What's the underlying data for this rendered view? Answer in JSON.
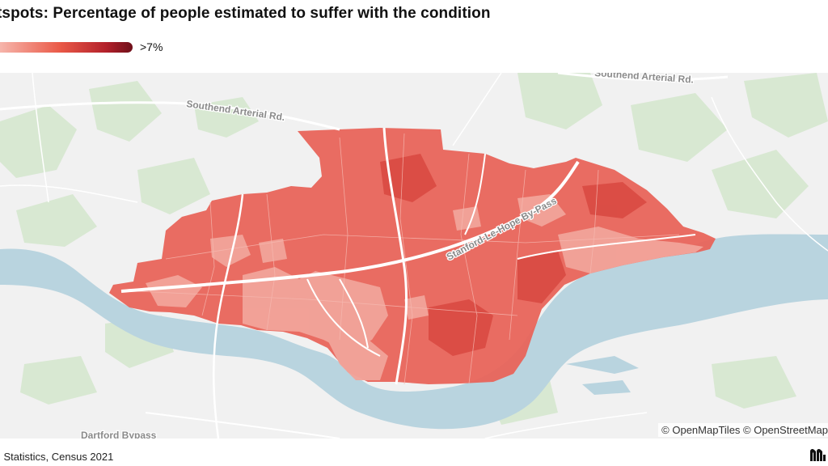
{
  "title": "tspots: Percentage of people estimated to suffer with the condition",
  "legend": {
    "max_label": ">7%",
    "gradient": [
      "#f6b5ab",
      "#ea5a48",
      "#b3202a",
      "#6e0f1a"
    ]
  },
  "map": {
    "road_labels": [
      "Southend Arterial Rd.",
      "Southend Arterial Rd.",
      "Stanford-Le-Hope By-Pass",
      "Dartford Bypass"
    ],
    "attribution": "© OpenMapTiles © OpenStreetMap",
    "colors": {
      "background": "#f1f1f1",
      "water": "#b9d4df",
      "park": "#d8e8d2",
      "road": "#ffffff",
      "choropleth_base": "#e8645a",
      "choropleth_light": "#f2a49a",
      "choropleth_dark": "#d94a42"
    }
  },
  "footer": {
    "source": "l Statistics, Census 2021",
    "logo_icon": "publisher-logo-icon"
  }
}
